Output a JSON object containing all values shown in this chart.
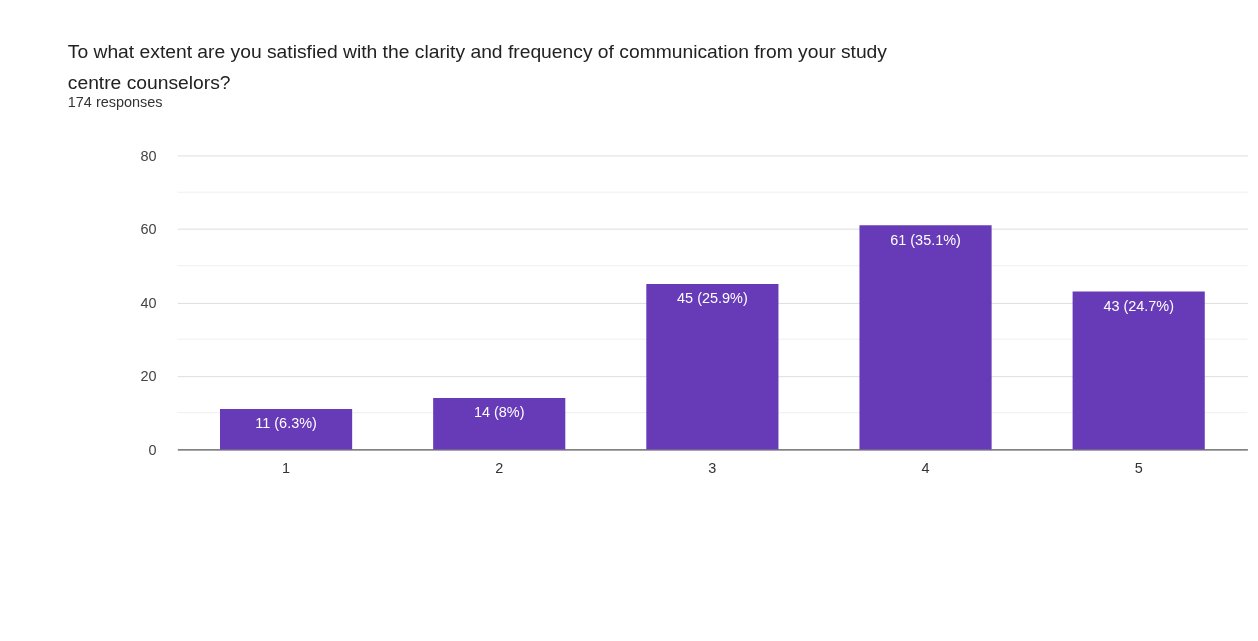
{
  "chart_data": {
    "type": "bar",
    "title": "To what extent are you satisfied with the clarity and frequency of communication  from your study centre counselors?",
    "subtitle": "174 responses",
    "categories": [
      "1",
      "2",
      "3",
      "4",
      "5"
    ],
    "values": [
      11,
      14,
      45,
      61,
      43
    ],
    "value_labels": [
      "11 (6.3%)",
      "14 (8%)",
      "45 (25.9%)",
      "61 (35.1%)",
      "43 (24.7%)"
    ],
    "color": "#673ab7",
    "ylim": [
      0,
      80
    ],
    "yticks": [
      0,
      {
        "value": 10,
        "label": null
      },
      20,
      {
        "value": 30,
        "label": null
      },
      40,
      {
        "value": 50,
        "label": null
      },
      60,
      {
        "value": 70,
        "label": null
      },
      80
    ],
    "grid": "y"
  }
}
